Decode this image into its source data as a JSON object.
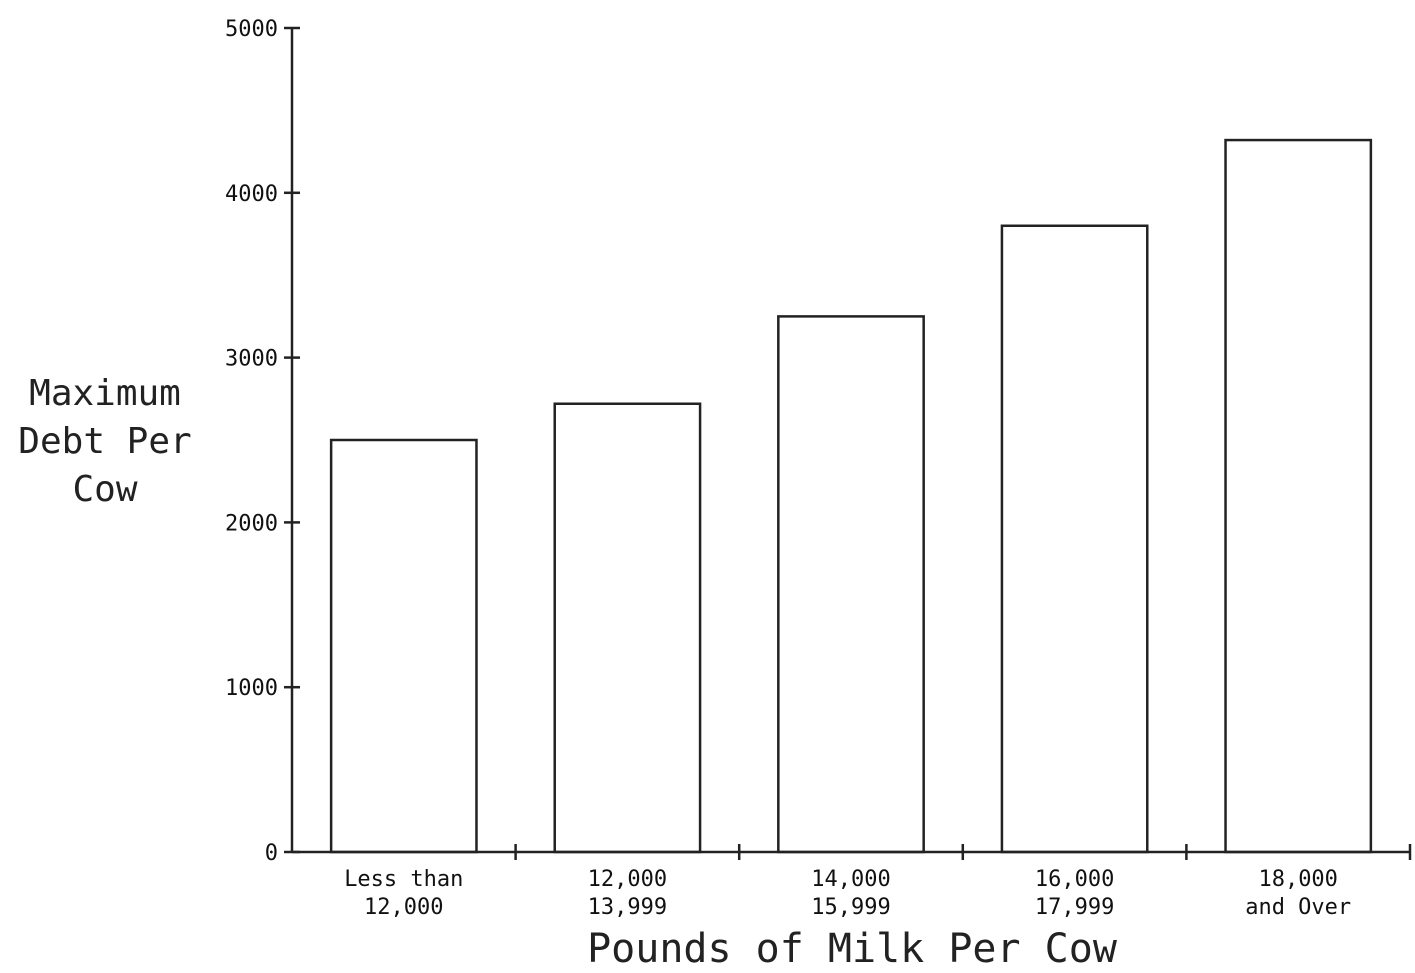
{
  "chart_data": {
    "type": "bar",
    "categories": [
      [
        "Less than",
        "12,000"
      ],
      [
        "12,000",
        "13,999"
      ],
      [
        "14,000",
        "15,999"
      ],
      [
        "16,000",
        "17,999"
      ],
      [
        "18,000",
        "and Over"
      ]
    ],
    "values": [
      2500,
      2720,
      3250,
      3800,
      4320
    ],
    "ylabel": [
      "Maximum",
      "Debt Per",
      "Cow"
    ],
    "xlabel": "Pounds of Milk Per Cow",
    "ylim": [
      0,
      5000
    ],
    "yticks": [
      "0",
      "1000",
      "2000",
      "3000",
      "4000",
      "5000"
    ],
    "grid": false
  }
}
